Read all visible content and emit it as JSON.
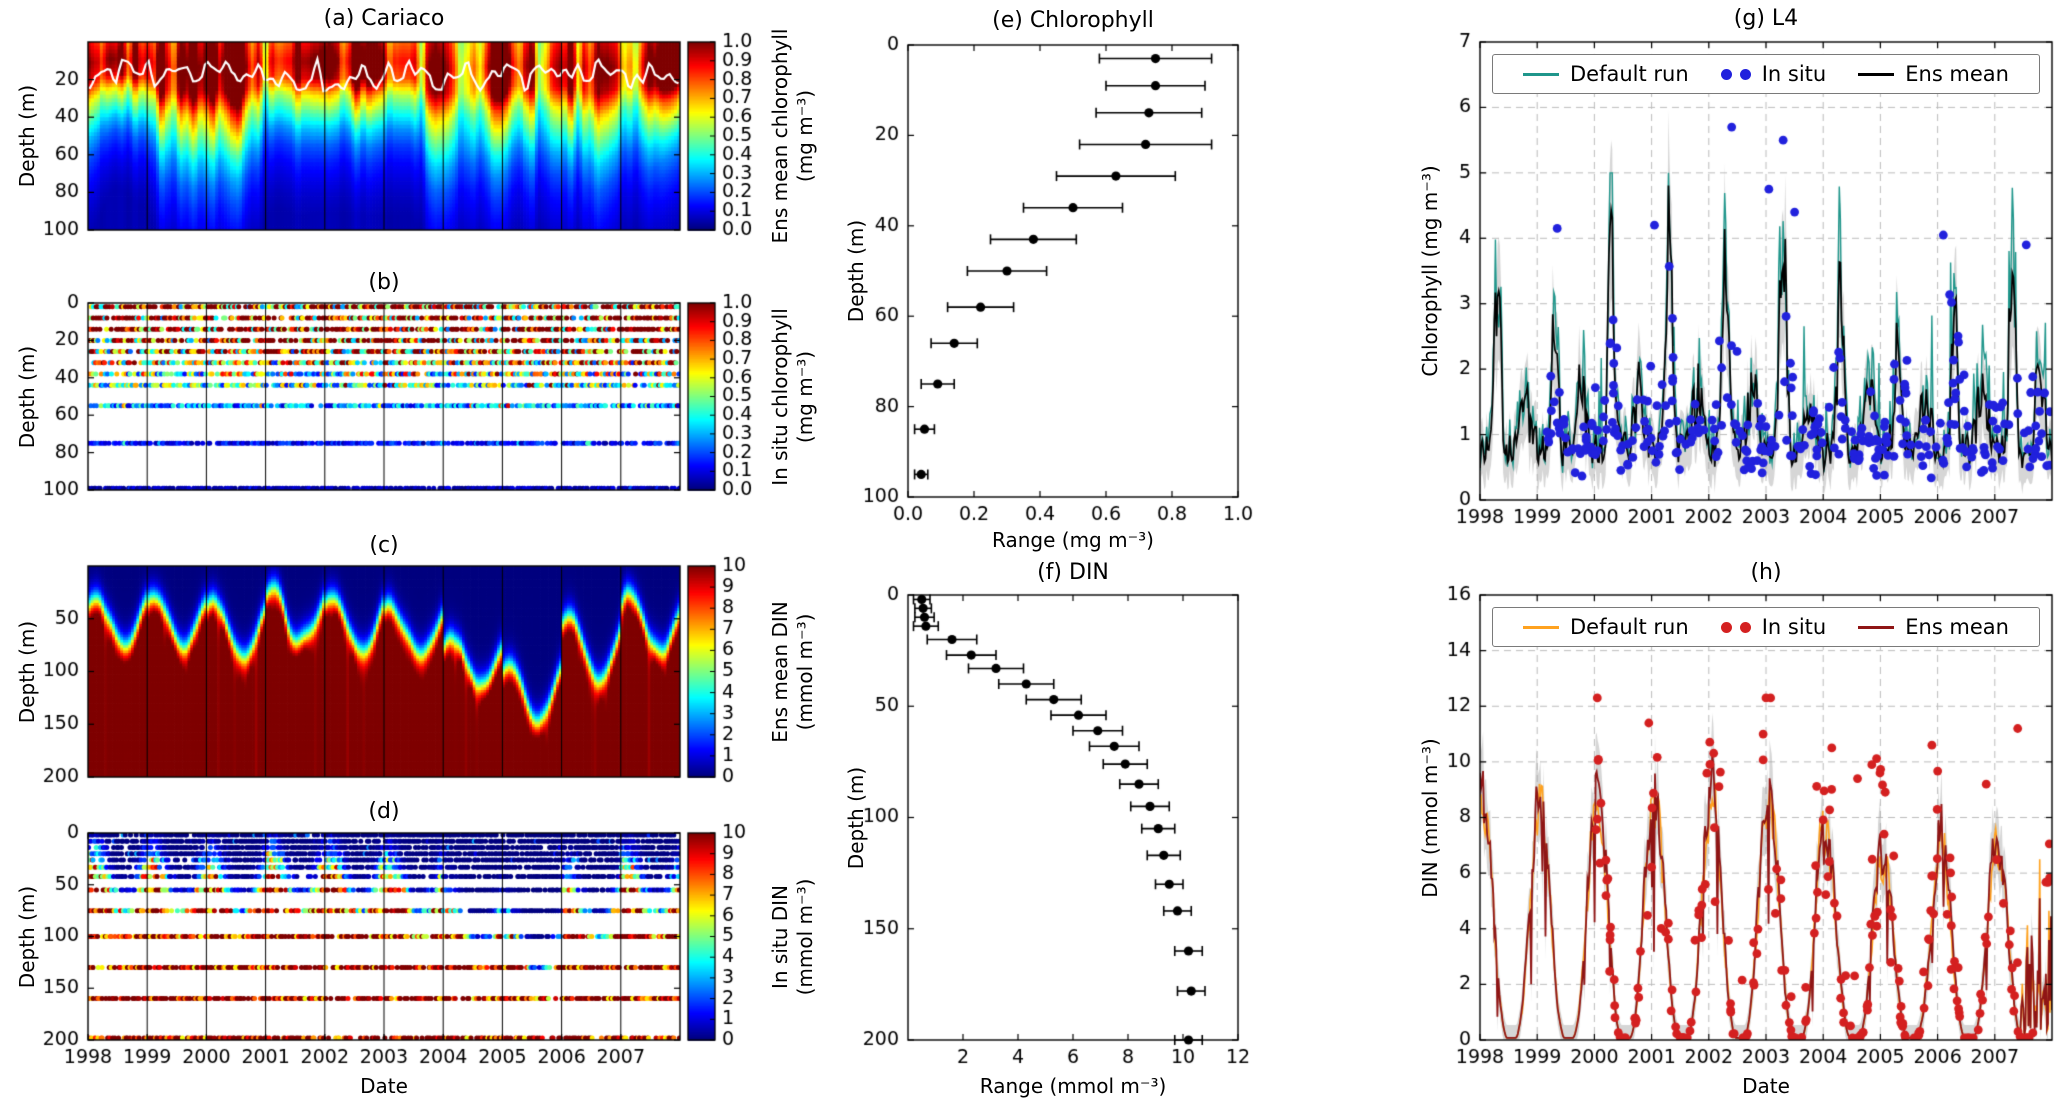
{
  "figure": {
    "background": "#ffffff"
  },
  "panels": {
    "a": {
      "title": "(a) Cariaco",
      "ylabel": "Depth (m)",
      "colorbar_label": [
        "Ens mean chlorophyll",
        "(mg m⁻³)"
      ]
    },
    "b": {
      "title": "(b)",
      "ylabel": "Depth (m)",
      "colorbar_label": [
        "In situ chlorophyll",
        "(mg m⁻³)"
      ]
    },
    "c": {
      "title": "(c)",
      "ylabel": "Depth (m)",
      "colorbar_label": [
        "Ens mean DIN",
        "(mmol m⁻³)"
      ]
    },
    "d": {
      "title": "(d)",
      "ylabel": "Depth (m)",
      "xlabel": "Date",
      "colorbar_label": [
        "In situ DIN",
        "(mmol m⁻³)"
      ]
    },
    "e": {
      "title": "(e) Chlorophyll",
      "ylabel": "Depth (m)",
      "xlabel": "Range (mg m⁻³)"
    },
    "f": {
      "title": "(f) DIN",
      "ylabel": "Depth (m)",
      "xlabel": "Range (mmol m⁻³)"
    },
    "g": {
      "title": "(g) L4",
      "ylabel": "Chlorophyll (mg m⁻³)",
      "legend": [
        {
          "label": "Default run",
          "marker": "line",
          "color": "#1f968b"
        },
        {
          "label": "In situ",
          "marker": "dots",
          "color": "#2121dd"
        },
        {
          "label": "Ens mean",
          "marker": "line",
          "color": "#000000"
        }
      ]
    },
    "h": {
      "title": "(h)",
      "ylabel": "DIN (mmol m⁻³)",
      "xlabel": "Date",
      "legend": [
        {
          "label": "Default run",
          "marker": "line",
          "color": "#ffa21f"
        },
        {
          "label": "In situ",
          "marker": "dots",
          "color": "#d42020"
        },
        {
          "label": "Ens mean",
          "marker": "line",
          "color": "#8f1515"
        }
      ]
    }
  },
  "chart_data": [
    {
      "id": "a",
      "type": "heatmap",
      "title": "(a) Cariaco",
      "x_range": [
        1998,
        2008
      ],
      "x_year_lines": [
        1999,
        2000,
        2001,
        2002,
        2003,
        2004,
        2005,
        2006,
        2007
      ],
      "y_range": [
        0,
        100
      ],
      "y_ticks": [
        20,
        40,
        60,
        80,
        100
      ],
      "colormap": "jet",
      "colorbar": {
        "range": [
          0,
          1
        ],
        "tick_values": [
          0,
          0.1,
          0.2,
          0.3,
          0.4,
          0.5,
          0.6,
          0.7,
          0.8,
          0.9,
          1
        ],
        "tick_labels": [
          "0.0",
          "0.1",
          "0.2",
          "0.3",
          "0.4",
          "0.5",
          "0.6",
          "0.7",
          "0.8",
          "0.9",
          "1.0"
        ],
        "label": [
          "Ens mean chlorophyll",
          "(mg m⁻³)"
        ]
      },
      "profile_depths": [
        0,
        10,
        20,
        30,
        40,
        50,
        60,
        70,
        80,
        90,
        100
      ],
      "profile_values": [
        0.88,
        0.97,
        0.9,
        0.62,
        0.45,
        0.3,
        0.2,
        0.14,
        0.1,
        0.07,
        0.05
      ],
      "mixed_layer_line": {
        "color": "#ffffff",
        "min_depth": 9,
        "max_depth": 27
      },
      "seed": 101
    },
    {
      "id": "b",
      "type": "scatter-depth-time",
      "title": "(b)",
      "x_range": [
        1998,
        2008
      ],
      "y_range": [
        0,
        100
      ],
      "y_ticks": [
        0,
        20,
        40,
        60,
        80,
        100
      ],
      "row_depths": [
        2,
        8,
        14,
        20,
        26,
        32,
        38,
        44,
        55,
        75,
        99
      ],
      "samples_per_year": 26,
      "gap_fraction": 0.14,
      "colorbar": {
        "range": [
          0,
          1
        ],
        "tick_values": [
          0,
          0.1,
          0.2,
          0.3,
          0.4,
          0.5,
          0.6,
          0.7,
          0.8,
          0.9,
          1
        ],
        "tick_labels": [
          "0.0",
          "0.1",
          "0.2",
          "0.3",
          "0.4",
          "0.5",
          "0.6",
          "0.7",
          "0.8",
          "0.9",
          "1.0"
        ],
        "label": [
          "In situ chlorophyll",
          "(mg m⁻³)"
        ]
      },
      "seed": 202
    },
    {
      "id": "c",
      "type": "heatmap",
      "title": "(c)",
      "x_range": [
        1998,
        2008
      ],
      "y_range": [
        0,
        200
      ],
      "y_ticks": [
        50,
        100,
        150,
        200
      ],
      "colormap": "jet",
      "colorbar": {
        "range": [
          0,
          10
        ],
        "tick_values": [
          0,
          1,
          2,
          3,
          4,
          5,
          6,
          7,
          8,
          9,
          10
        ],
        "tick_labels": [
          "0",
          "1",
          "2",
          "3",
          "4",
          "5",
          "6",
          "7",
          "8",
          "9",
          "10"
        ],
        "label": [
          "Ens mean DIN",
          "(mmol m⁻³)"
        ]
      },
      "nutricline_base_by_year": [
        52,
        55,
        60,
        50,
        56,
        62,
        95,
        118,
        78,
        58
      ],
      "nutricline_seasonal_amplitude": 26,
      "shallowest_month_fraction": 0.12,
      "deep_value": 10.8,
      "seed": 303
    },
    {
      "id": "d",
      "type": "scatter-depth-time",
      "title": "(d)",
      "x_range": [
        1998,
        2008
      ],
      "x_ticks": [
        1998,
        1999,
        2000,
        2001,
        2002,
        2003,
        2004,
        2005,
        2006,
        2007
      ],
      "y_range": [
        0,
        200
      ],
      "y_ticks": [
        0,
        50,
        100,
        150,
        200
      ],
      "row_depths": [
        2,
        8,
        14,
        20,
        26,
        33,
        42,
        55,
        75,
        100,
        130,
        160,
        198
      ],
      "samples_per_year": 26,
      "gap_fraction": 0.15,
      "colorbar": {
        "range": [
          0,
          10
        ],
        "tick_values": [
          0,
          1,
          2,
          3,
          4,
          5,
          6,
          7,
          8,
          9,
          10
        ],
        "tick_labels": [
          "0",
          "1",
          "2",
          "3",
          "4",
          "5",
          "6",
          "7",
          "8",
          "9",
          "10"
        ],
        "label": [
          "In situ DIN",
          "(mmol m⁻³)"
        ]
      },
      "seed": 404
    },
    {
      "id": "e",
      "type": "errorbar-profile",
      "title": "(e) Chlorophyll",
      "xlabel": "Range (mg m⁻³)",
      "ylabel": "Depth (m)",
      "xlim": [
        0,
        1
      ],
      "x_tick_values": [
        0,
        0.2,
        0.4,
        0.6,
        0.8,
        1
      ],
      "x_tick_labels": [
        "0.0",
        "0.2",
        "0.4",
        "0.6",
        "0.8",
        "1.0"
      ],
      "ylim": [
        0,
        100
      ],
      "y_ticks": [
        0,
        20,
        40,
        60,
        80,
        100
      ],
      "marker_color": "#000000",
      "points": [
        [
          3,
          0.75,
          0.17
        ],
        [
          9,
          0.75,
          0.15
        ],
        [
          15,
          0.73,
          0.16
        ],
        [
          22,
          0.72,
          0.2
        ],
        [
          29,
          0.63,
          0.18
        ],
        [
          36,
          0.5,
          0.15
        ],
        [
          43,
          0.38,
          0.13
        ],
        [
          50,
          0.3,
          0.12
        ],
        [
          58,
          0.22,
          0.1
        ],
        [
          66,
          0.14,
          0.07
        ],
        [
          75,
          0.09,
          0.05
        ],
        [
          85,
          0.05,
          0.03
        ],
        [
          95,
          0.04,
          0.02
        ]
      ]
    },
    {
      "id": "f",
      "type": "errorbar-profile",
      "title": "(f) DIN",
      "xlabel": "Range (mmol m⁻³)",
      "ylabel": "Depth (m)",
      "xlim": [
        0,
        12
      ],
      "x_tick_values": [
        2,
        4,
        6,
        8,
        10,
        12
      ],
      "x_tick_labels": [
        "2",
        "4",
        "6",
        "8",
        "10",
        "12"
      ],
      "ylim": [
        0,
        200
      ],
      "y_ticks": [
        0,
        50,
        100,
        150,
        200
      ],
      "marker_color": "#000000",
      "points": [
        [
          2,
          0.5,
          0.3
        ],
        [
          6,
          0.55,
          0.3
        ],
        [
          10,
          0.6,
          0.35
        ],
        [
          14,
          0.65,
          0.45
        ],
        [
          20,
          1.6,
          0.9
        ],
        [
          27,
          2.3,
          0.9
        ],
        [
          33,
          3.2,
          1.0
        ],
        [
          40,
          4.3,
          1.0
        ],
        [
          47,
          5.3,
          1.0
        ],
        [
          54,
          6.2,
          1.0
        ],
        [
          61,
          6.9,
          0.9
        ],
        [
          68,
          7.5,
          0.9
        ],
        [
          76,
          7.9,
          0.8
        ],
        [
          85,
          8.4,
          0.7
        ],
        [
          95,
          8.8,
          0.7
        ],
        [
          105,
          9.1,
          0.6
        ],
        [
          117,
          9.3,
          0.6
        ],
        [
          130,
          9.5,
          0.5
        ],
        [
          142,
          9.8,
          0.5
        ],
        [
          160,
          10.2,
          0.5
        ],
        [
          178,
          10.3,
          0.5
        ],
        [
          200,
          10.2,
          0.5
        ]
      ]
    },
    {
      "id": "g",
      "type": "timeseries",
      "title": "(g) L4",
      "ylabel": "Chlorophyll (mg m⁻³)",
      "xlim": [
        1998,
        2008
      ],
      "x_tick_values": [
        1998,
        1999,
        2000,
        2001,
        2002,
        2003,
        2004,
        2005,
        2006,
        2007
      ],
      "ylim": [
        0,
        7
      ],
      "y_ticks": [
        0,
        1,
        2,
        3,
        4,
        5,
        6,
        7
      ],
      "grid": true,
      "series": [
        {
          "name": "Default run",
          "color": "#1f968b",
          "style": "line"
        },
        {
          "name": "In situ",
          "color": "#2121dd",
          "style": "dots"
        },
        {
          "name": "Ens mean",
          "color": "#000000",
          "style": "line",
          "band_color": "rgba(165,165,165,0.45)"
        }
      ],
      "seasonal": {
        "baseline": 0.75,
        "bloom_center": 0.3,
        "bloom_width": 0.055,
        "bloom_amp_by_year": [
          2.6,
          1.8,
          3.0,
          3.2,
          2.9,
          3.9,
          2.1,
          1.7,
          1.9,
          2.6
        ],
        "autumn_center": 0.78,
        "autumn_width": 0.09,
        "autumn_amp": 0.9
      },
      "insitu": {
        "start": 1999.15,
        "end": 2008.0,
        "count": 310,
        "min": 0.15,
        "max": 5.75,
        "outliers": [
          [
            1999.35,
            4.15
          ],
          [
            2001.05,
            4.2
          ],
          [
            2002.4,
            5.7
          ],
          [
            2003.05,
            4.75
          ],
          [
            2003.3,
            5.5
          ],
          [
            2003.5,
            4.4
          ],
          [
            2006.1,
            4.05
          ],
          [
            2007.55,
            3.9
          ]
        ]
      },
      "seed": 505
    },
    {
      "id": "h",
      "type": "timeseries",
      "title": "(h)",
      "ylabel": "DIN (mmol m⁻³)",
      "xlabel": "Date",
      "xlim": [
        1998,
        2008
      ],
      "x_tick_values": [
        1998,
        1999,
        2000,
        2001,
        2002,
        2003,
        2004,
        2005,
        2006,
        2007
      ],
      "ylim": [
        0,
        16
      ],
      "y_ticks": [
        0,
        2,
        4,
        6,
        8,
        10,
        12,
        14,
        16
      ],
      "grid": true,
      "series": [
        {
          "name": "Default run",
          "color": "#ffa21f",
          "style": "line"
        },
        {
          "name": "In situ",
          "color": "#d42020",
          "style": "dots"
        },
        {
          "name": "Ens mean",
          "color": "#8f1515",
          "style": "line",
          "band_color": "rgba(165,165,165,0.45)"
        }
      ],
      "seasonal": {
        "winter_peak_by_year": [
          8.8,
          8.8,
          9.2,
          8.8,
          9.3,
          8.9,
          7.4,
          6.6,
          7.6,
          7.2
        ],
        "peak_center": 0.05,
        "shape_power": 1.7
      },
      "tail_noise": {
        "start": 2007.45,
        "max": 6.5
      },
      "insitu": {
        "start": 2000.0,
        "end": 2008.0,
        "count": 230,
        "min": 0.08,
        "max": 12.3,
        "outliers": [
          [
            2002.95,
            11.0
          ],
          [
            2003.0,
            12.3
          ],
          [
            2004.15,
            10.5
          ],
          [
            2004.6,
            9.4
          ],
          [
            2004.85,
            9.9
          ],
          [
            2005.9,
            10.6
          ],
          [
            2006.85,
            9.2
          ],
          [
            2007.4,
            11.2
          ]
        ]
      },
      "seed": 606
    }
  ]
}
